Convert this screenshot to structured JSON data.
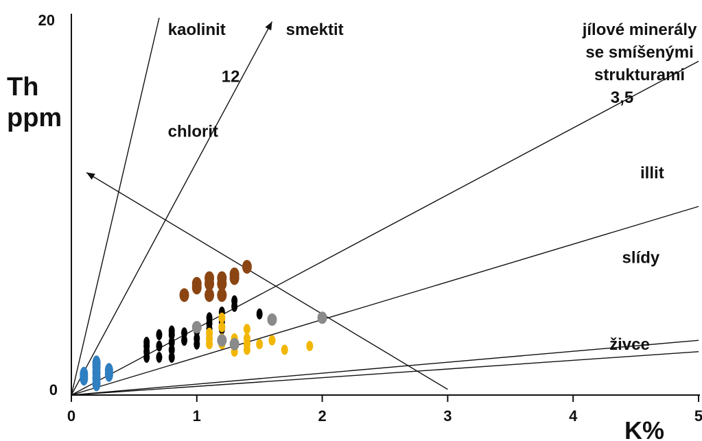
{
  "chart_data": {
    "type": "scatter",
    "title": "",
    "xlabel": "K%",
    "ylabel_line1": "Th",
    "ylabel_line2": "ppm",
    "xlim": [
      0,
      5
    ],
    "ylim": [
      0,
      20
    ],
    "x_ticks": [
      "0",
      "1",
      "2",
      "3",
      "4",
      "5"
    ],
    "y_ticks": [
      "0",
      "20"
    ],
    "grid": false,
    "reference_lines": [
      {
        "name": "line-kaolinit-chlorit",
        "from": [
          0,
          0
        ],
        "to": [
          0.7,
          20
        ]
      },
      {
        "name": "line-smektit",
        "from": [
          0,
          0
        ],
        "to": [
          1.6,
          19.8
        ],
        "arrow": true
      },
      {
        "name": "line-mixed-layer",
        "from": [
          0,
          0
        ],
        "to": [
          5,
          17.7
        ]
      },
      {
        "name": "line-illit",
        "from": [
          0,
          0
        ],
        "to": [
          5,
          10.0
        ]
      },
      {
        "name": "line-zivce-upper",
        "from": [
          0,
          0
        ],
        "to": [
          5,
          2.9
        ]
      },
      {
        "name": "line-zivce-lower",
        "from": [
          0,
          0
        ],
        "to": [
          5,
          2.3
        ]
      },
      {
        "name": "trend-arrow",
        "from": [
          3.0,
          0.3
        ],
        "to": [
          0.12,
          11.8
        ],
        "arrow": true
      }
    ],
    "region_labels": [
      {
        "text": "kaolinit",
        "x": 1.0,
        "y": 19.1
      },
      {
        "text": "smektit",
        "x": 1.94,
        "y": 19.1
      },
      {
        "text": "12",
        "x": 1.27,
        "y": 16.6
      },
      {
        "text": "chlorit",
        "x": 0.97,
        "y": 13.7
      },
      {
        "text": "jílové minerály",
        "x": 4.53,
        "y": 19.1
      },
      {
        "text": "se smíšenými",
        "x": 4.53,
        "y": 17.9
      },
      {
        "text": "strukturami",
        "x": 4.53,
        "y": 16.7
      },
      {
        "text": "3,5",
        "x": 4.39,
        "y": 15.5
      },
      {
        "text": "illit",
        "x": 4.63,
        "y": 11.5
      },
      {
        "text": "slídy",
        "x": 4.54,
        "y": 7.0
      },
      {
        "text": "živce",
        "x": 4.45,
        "y": 2.4
      }
    ],
    "colors": {
      "blue": "#2f7fc1",
      "black": "#000000",
      "brown": "#8b4513",
      "yellow": "#f2b705",
      "gray": "#8a8a8a"
    },
    "series": [
      {
        "color": "blue",
        "points": [
          [
            0.1,
            0.9
          ],
          [
            0.1,
            1.1
          ],
          [
            0.2,
            0.6
          ],
          [
            0.2,
            0.9
          ],
          [
            0.2,
            1.2
          ],
          [
            0.2,
            1.5
          ],
          [
            0.2,
            1.7
          ],
          [
            0.3,
            1.1
          ],
          [
            0.3,
            1.3
          ]
        ]
      },
      {
        "color": "black",
        "points": [
          [
            0.6,
            2.0
          ],
          [
            0.6,
            2.3
          ],
          [
            0.6,
            2.6
          ],
          [
            0.6,
            2.8
          ],
          [
            0.7,
            2.0
          ],
          [
            0.7,
            2.6
          ],
          [
            0.7,
            3.2
          ],
          [
            0.8,
            2.0
          ],
          [
            0.8,
            2.4
          ],
          [
            0.8,
            2.8
          ],
          [
            0.8,
            3.2
          ],
          [
            0.8,
            3.4
          ],
          [
            0.9,
            2.9
          ],
          [
            0.9,
            3.3
          ],
          [
            1.0,
            2.7
          ],
          [
            1.0,
            3.0
          ],
          [
            1.0,
            3.4
          ],
          [
            1.1,
            2.9
          ],
          [
            1.1,
            3.2
          ],
          [
            1.1,
            3.5
          ],
          [
            1.1,
            3.8
          ],
          [
            1.1,
            4.1
          ],
          [
            1.2,
            3.5
          ],
          [
            1.2,
            3.9
          ],
          [
            1.2,
            4.1
          ],
          [
            1.2,
            4.4
          ],
          [
            1.3,
            4.7
          ],
          [
            1.3,
            5.0
          ],
          [
            1.5,
            4.3
          ]
        ]
      },
      {
        "color": "brown",
        "points": [
          [
            0.9,
            5.3
          ],
          [
            1.0,
            5.7
          ],
          [
            1.0,
            5.9
          ],
          [
            1.1,
            5.3
          ],
          [
            1.1,
            5.9
          ],
          [
            1.1,
            6.2
          ],
          [
            1.2,
            5.3
          ],
          [
            1.2,
            5.9
          ],
          [
            1.2,
            6.2
          ],
          [
            1.3,
            6.2
          ],
          [
            1.3,
            6.4
          ],
          [
            1.4,
            6.8
          ]
        ]
      },
      {
        "color": "yellow",
        "points": [
          [
            1.0,
            3.6
          ],
          [
            1.1,
            2.7
          ],
          [
            1.1,
            3.0
          ],
          [
            1.1,
            3.3
          ],
          [
            1.2,
            2.7
          ],
          [
            1.2,
            3.0
          ],
          [
            1.2,
            3.6
          ],
          [
            1.2,
            4.1
          ],
          [
            1.3,
            2.3
          ],
          [
            1.3,
            2.6
          ],
          [
            1.3,
            2.9
          ],
          [
            1.3,
            3.0
          ],
          [
            1.4,
            2.4
          ],
          [
            1.4,
            2.7
          ],
          [
            1.4,
            3.0
          ],
          [
            1.4,
            3.5
          ],
          [
            1.5,
            2.7
          ],
          [
            1.6,
            2.9
          ],
          [
            1.7,
            2.4
          ],
          [
            1.9,
            2.6
          ]
        ]
      },
      {
        "color": "gray",
        "points": [
          [
            1.0,
            3.6
          ],
          [
            1.2,
            2.9
          ],
          [
            1.3,
            2.7
          ],
          [
            1.6,
            4.0
          ],
          [
            2.0,
            4.1
          ]
        ]
      }
    ]
  }
}
